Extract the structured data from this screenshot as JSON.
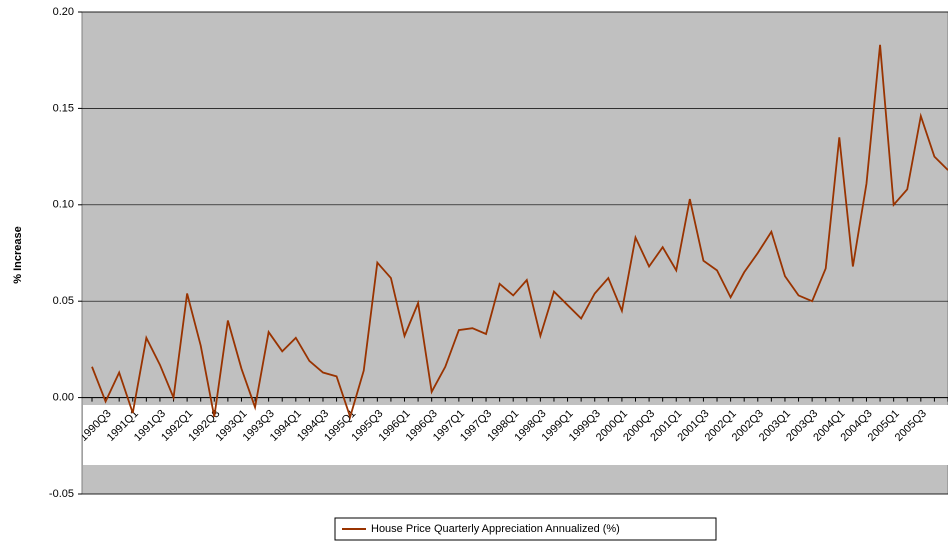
{
  "chart_data": {
    "type": "line",
    "y_label": "% Increase",
    "categories": [
      null,
      "1990Q3",
      null,
      "1991Q1",
      null,
      "1991Q3",
      null,
      "1992Q1",
      null,
      "1992Q3",
      null,
      "1993Q1",
      null,
      "1993Q3",
      null,
      "1994Q1",
      null,
      "1994Q3",
      null,
      "1995Q1",
      null,
      "1995Q3",
      null,
      "1996Q1",
      null,
      "1996Q3",
      null,
      "1997Q1",
      null,
      "1997Q3",
      null,
      "1998Q1",
      null,
      "1998Q3",
      null,
      "1999Q1",
      null,
      "1999Q3",
      null,
      "2000Q1",
      null,
      "2000Q3",
      null,
      "2001Q1",
      null,
      "2001Q3",
      null,
      "2002Q1",
      null,
      "2002Q3",
      null,
      "2003Q1",
      null,
      "2003Q3",
      null,
      "2004Q1",
      null,
      "2004Q3",
      null,
      "2005Q1",
      null,
      "2005Q3",
      null,
      null
    ],
    "series": [
      {
        "name": "House Price Quarterly Appreciation Annualized (%)",
        "color": "#993300",
        "values": [
          0.016,
          -0.002,
          0.013,
          -0.008,
          0.031,
          0.017,
          0.0,
          0.054,
          0.027,
          -0.01,
          0.04,
          0.015,
          -0.005,
          0.034,
          0.024,
          0.031,
          0.019,
          0.013,
          0.011,
          -0.01,
          0.014,
          0.07,
          0.062,
          0.032,
          0.049,
          0.003,
          0.016,
          0.035,
          0.036,
          0.033,
          0.059,
          0.053,
          0.061,
          0.032,
          0.055,
          0.048,
          0.041,
          0.054,
          0.062,
          0.045,
          0.083,
          0.068,
          0.078,
          0.066,
          0.103,
          0.071,
          0.066,
          0.052,
          0.065,
          0.075,
          0.086,
          0.063,
          0.053,
          0.05,
          0.067,
          0.135,
          0.068,
          0.111,
          0.183,
          0.1,
          0.108,
          0.146,
          0.125,
          0.118
        ]
      }
    ],
    "ylim": [
      -0.05,
      0.2
    ],
    "yticks": [
      {
        "value": -0.05,
        "label": "-0.05"
      },
      {
        "value": 0,
        "label": "0.00"
      },
      {
        "value": 0.05,
        "label": "0.05"
      },
      {
        "value": 0.1,
        "label": "0.10"
      },
      {
        "value": 0.15,
        "label": "0.15"
      },
      {
        "value": 0.2,
        "label": "0.20"
      }
    ],
    "grid": true,
    "legend": "bottom"
  }
}
